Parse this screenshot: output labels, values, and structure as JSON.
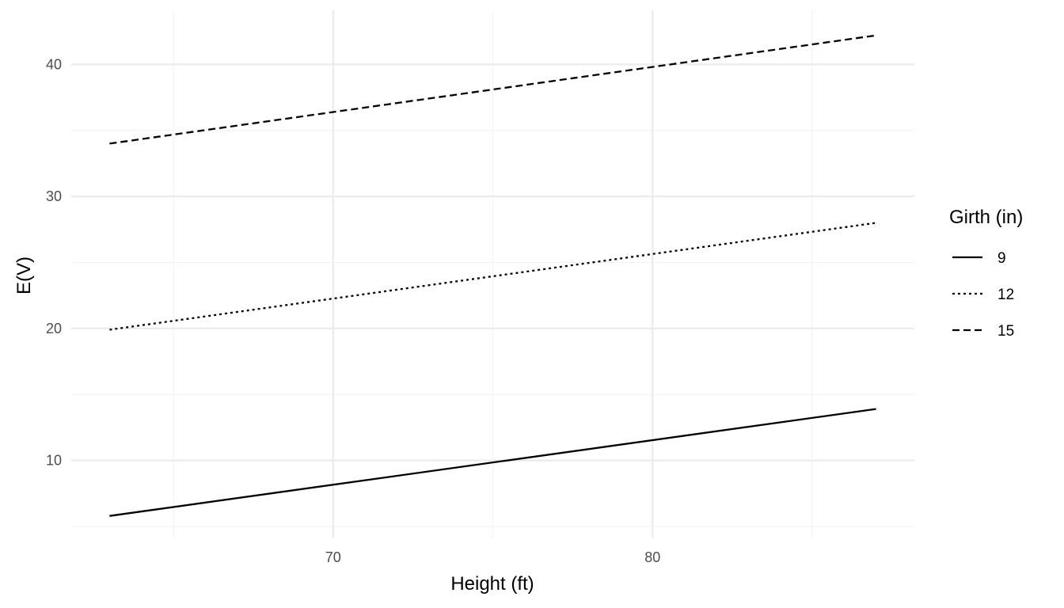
{
  "chart_data": {
    "type": "line",
    "xlabel": "Height (ft)",
    "ylabel": "E(V)",
    "xlim": [
      61.8,
      88.2
    ],
    "ylim": [
      4.1,
      44.1
    ],
    "x_ticks": [
      70,
      80
    ],
    "x_minor_ticks": [
      65,
      75,
      85
    ],
    "y_ticks": [
      10,
      20,
      30,
      40
    ],
    "y_minor_ticks": [
      5,
      15,
      25,
      35
    ],
    "grid": true,
    "legend": {
      "title": "Girth (in)",
      "placement": "right"
    },
    "series": [
      {
        "name": "9",
        "line_style": "solid",
        "x": [
          63,
          87
        ],
        "values": [
          5.8,
          13.9
        ]
      },
      {
        "name": "12",
        "line_style": "dotted",
        "x": [
          63,
          87
        ],
        "values": [
          19.9,
          28.0
        ]
      },
      {
        "name": "15",
        "line_style": "dashed",
        "x": [
          63,
          87
        ],
        "values": [
          34.0,
          42.2
        ]
      }
    ]
  }
}
